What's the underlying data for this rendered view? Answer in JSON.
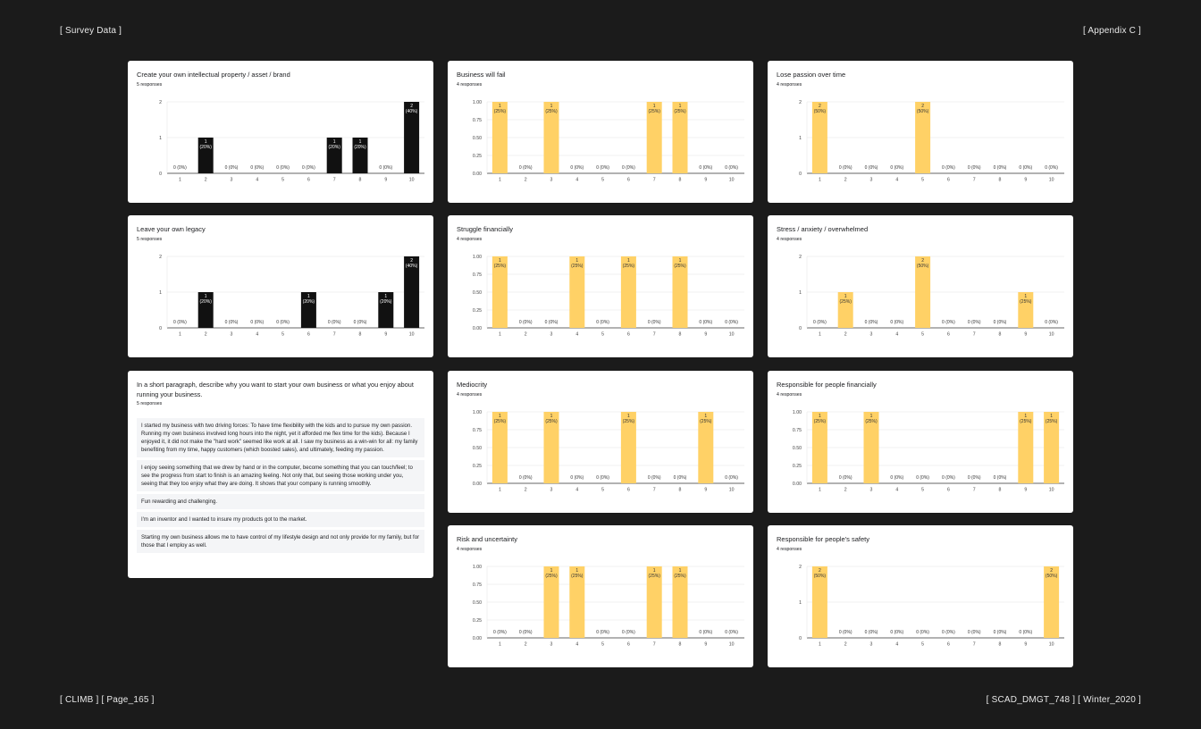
{
  "page": {
    "top_left": "[ Survey Data ]",
    "top_right": "[ Appendix C ]",
    "bottom_left": "[ CLIMB ] [ Page_165 ]",
    "bottom_right": "[ SCAD_DMGT_748 ] [ Winter_2020 ]"
  },
  "colors": {
    "dark_bar": "#111111",
    "yellow_bar": "#ffd166",
    "background": "#1b1b1b",
    "card": "#ffffff"
  },
  "paragraph_card": {
    "title": "In a short paragraph, describe why you want to start your own business or what you enjoy about running your business.",
    "subtitle": "5 responses",
    "responses": [
      "I started my business with two driving forces: To have time flexibility with the kids and to pursue my own passion. Running my own business involved long hours into the night, yet it afforded me flex time for the kids). Because I enjoyed it, it did not make the \"hard work\" seemed like work at all. I saw my business as a win-win for all: my family benefiting from my time, happy customers (which boosted sales), and ultimately, feeding my passion.",
      "I enjoy seeing something that we drew by hand or in the computer, become something that you can touch/feel; to see the progress from start to finish is an amazing feeling. Not only that, but seeing those working under you, seeing that they too enjoy what they are doing. It shows that your company is running smoothly.",
      "Fun rewarding and challenging.",
      "I'm an inventor and I wanted to insure my products got to the market.",
      "Starting my own business allows me to have control of my lifestyle design and not only provide for my family, but for those that I employ as well."
    ]
  },
  "chart_data": [
    {
      "id": "ip",
      "type": "bar",
      "title": "Create your own intellectual property / asset / brand",
      "subtitle": "5 responses",
      "color": "dark",
      "categories": [
        "1",
        "2",
        "3",
        "4",
        "5",
        "6",
        "7",
        "8",
        "9",
        "10"
      ],
      "values": [
        0,
        1,
        0,
        0,
        0,
        0,
        1,
        1,
        0,
        2
      ],
      "labels": [
        "0 (0%)",
        "1 (20%)",
        "0 (0%)",
        "0 (0%)",
        "0 (0%)",
        "0 (0%)",
        "1 (20%)",
        "1 (20%)",
        "0 (0%)",
        "2 (40%)"
      ],
      "yticks": [
        "0",
        "1",
        "2"
      ],
      "ylim": [
        0,
        2
      ]
    },
    {
      "id": "fail",
      "type": "bar",
      "title": "Business will fail",
      "subtitle": "4 responses",
      "color": "yellow",
      "categories": [
        "1",
        "2",
        "3",
        "4",
        "5",
        "6",
        "7",
        "8",
        "9",
        "10"
      ],
      "values": [
        1,
        0,
        1,
        0,
        0,
        0,
        1,
        1,
        0,
        0
      ],
      "labels": [
        "1 (25%)",
        "0 (0%)",
        "1 (25%)",
        "0 (0%)",
        "0 (0%)",
        "0 (0%)",
        "1 (25%)",
        "1 (25%)",
        "0 (0%)",
        "0 (0%)"
      ],
      "yticks": [
        "0.00",
        "0.25",
        "0.50",
        "0.75",
        "1.00"
      ],
      "ylim": [
        0,
        1
      ]
    },
    {
      "id": "passion",
      "type": "bar",
      "title": "Lose passion over time",
      "subtitle": "4 responses",
      "color": "yellow",
      "categories": [
        "1",
        "2",
        "3",
        "4",
        "5",
        "6",
        "7",
        "8",
        "9",
        "10"
      ],
      "values": [
        2,
        0,
        0,
        0,
        2,
        0,
        0,
        0,
        0,
        0
      ],
      "labels": [
        "2 (50%)",
        "0 (0%)",
        "0 (0%)",
        "0 (0%)",
        "2 (50%)",
        "0 (0%)",
        "0 (0%)",
        "0 (0%)",
        "0 (0%)",
        "0 (0%)"
      ],
      "yticks": [
        "0",
        "1",
        "2"
      ],
      "ylim": [
        0,
        2
      ]
    },
    {
      "id": "legacy",
      "type": "bar",
      "title": "Leave your own legacy",
      "subtitle": "5 responses",
      "color": "dark",
      "categories": [
        "1",
        "2",
        "3",
        "4",
        "5",
        "6",
        "7",
        "8",
        "9",
        "10"
      ],
      "values": [
        0,
        1,
        0,
        0,
        0,
        1,
        0,
        0,
        1,
        2
      ],
      "labels": [
        "0 (0%)",
        "1 (20%)",
        "0 (0%)",
        "0 (0%)",
        "0 (0%)",
        "1 (20%)",
        "0 (0%)",
        "0 (0%)",
        "1 (20%)",
        "2 (40%)"
      ],
      "yticks": [
        "0",
        "1",
        "2"
      ],
      "ylim": [
        0,
        2
      ]
    },
    {
      "id": "struggle",
      "type": "bar",
      "title": "Struggle financially",
      "subtitle": "4 responses",
      "color": "yellow",
      "categories": [
        "1",
        "2",
        "3",
        "4",
        "5",
        "6",
        "7",
        "8",
        "9",
        "10"
      ],
      "values": [
        1,
        0,
        0,
        1,
        0,
        1,
        0,
        1,
        0,
        0
      ],
      "labels": [
        "1 (25%)",
        "0 (0%)",
        "0 (0%)",
        "1 (25%)",
        "0 (0%)",
        "1 (25%)",
        "0 (0%)",
        "1 (25%)",
        "0 (0%)",
        "0 (0%)"
      ],
      "yticks": [
        "0.00",
        "0.25",
        "0.50",
        "0.75",
        "1.00"
      ],
      "ylim": [
        0,
        1
      ]
    },
    {
      "id": "stress",
      "type": "bar",
      "title": "Stress / anxiety / overwhelmed",
      "subtitle": "4 responses",
      "color": "yellow",
      "categories": [
        "1",
        "2",
        "3",
        "4",
        "5",
        "6",
        "7",
        "8",
        "9",
        "10"
      ],
      "values": [
        0,
        1,
        0,
        0,
        2,
        0,
        0,
        0,
        1,
        0
      ],
      "labels": [
        "0 (0%)",
        "1 (25%)",
        "0 (0%)",
        "0 (0%)",
        "2 (50%)",
        "0 (0%)",
        "0 (0%)",
        "0 (0%)",
        "1 (25%)",
        "0 (0%)"
      ],
      "yticks": [
        "0",
        "1",
        "2"
      ],
      "ylim": [
        0,
        2
      ]
    },
    {
      "id": "mediocrity",
      "type": "bar",
      "title": "Mediocrity",
      "subtitle": "4 responses",
      "color": "yellow",
      "categories": [
        "1",
        "2",
        "3",
        "4",
        "5",
        "6",
        "7",
        "8",
        "9",
        "10"
      ],
      "values": [
        1,
        0,
        1,
        0,
        0,
        1,
        0,
        0,
        1,
        0
      ],
      "labels": [
        "1 (25%)",
        "0 (0%)",
        "1 (25%)",
        "0 (0%)",
        "0 (0%)",
        "1 (25%)",
        "0 (0%)",
        "0 (0%)",
        "1 (25%)",
        "0 (0%)"
      ],
      "yticks": [
        "0.00",
        "0.25",
        "0.50",
        "0.75",
        "1.00"
      ],
      "ylim": [
        0,
        1
      ]
    },
    {
      "id": "respfin",
      "type": "bar",
      "title": "Responsible for people financially",
      "subtitle": "4 responses",
      "color": "yellow",
      "categories": [
        "1",
        "2",
        "3",
        "4",
        "5",
        "6",
        "7",
        "8",
        "9",
        "10"
      ],
      "values": [
        1,
        0,
        1,
        0,
        0,
        0,
        0,
        0,
        1,
        1
      ],
      "labels": [
        "1 (25%)",
        "0 (0%)",
        "1 (25%)",
        "0 (0%)",
        "0 (0%)",
        "0 (0%)",
        "0 (0%)",
        "0 (0%)",
        "1 (25%)",
        "1 (25%)"
      ],
      "yticks": [
        "0.00",
        "0.25",
        "0.50",
        "0.75",
        "1.00"
      ],
      "ylim": [
        0,
        1
      ]
    },
    {
      "id": "risk",
      "type": "bar",
      "title": "Risk and uncertainty",
      "subtitle": "4 responses",
      "color": "yellow",
      "categories": [
        "1",
        "2",
        "3",
        "4",
        "5",
        "6",
        "7",
        "8",
        "9",
        "10"
      ],
      "values": [
        0,
        0,
        1,
        1,
        0,
        0,
        1,
        1,
        0,
        0
      ],
      "labels": [
        "0 (0%)",
        "0 (0%)",
        "1 (25%)",
        "1 (25%)",
        "0 (0%)",
        "0 (0%)",
        "1 (25%)",
        "1 (25%)",
        "0 (0%)",
        "0 (0%)"
      ],
      "yticks": [
        "0.00",
        "0.25",
        "0.50",
        "0.75",
        "1.00"
      ],
      "ylim": [
        0,
        1
      ]
    },
    {
      "id": "safety",
      "type": "bar",
      "title": "Responsible for people's safety",
      "subtitle": "4 responses",
      "color": "yellow",
      "categories": [
        "1",
        "2",
        "3",
        "4",
        "5",
        "6",
        "7",
        "8",
        "9",
        "10"
      ],
      "values": [
        2,
        0,
        0,
        0,
        0,
        0,
        0,
        0,
        0,
        2
      ],
      "labels": [
        "2 (50%)",
        "0 (0%)",
        "0 (0%)",
        "0 (0%)",
        "0 (0%)",
        "0 (0%)",
        "0 (0%)",
        "0 (0%)",
        "0 (0%)",
        "2 (50%)"
      ],
      "yticks": [
        "0",
        "1",
        "2"
      ],
      "ylim": [
        0,
        2
      ]
    }
  ]
}
